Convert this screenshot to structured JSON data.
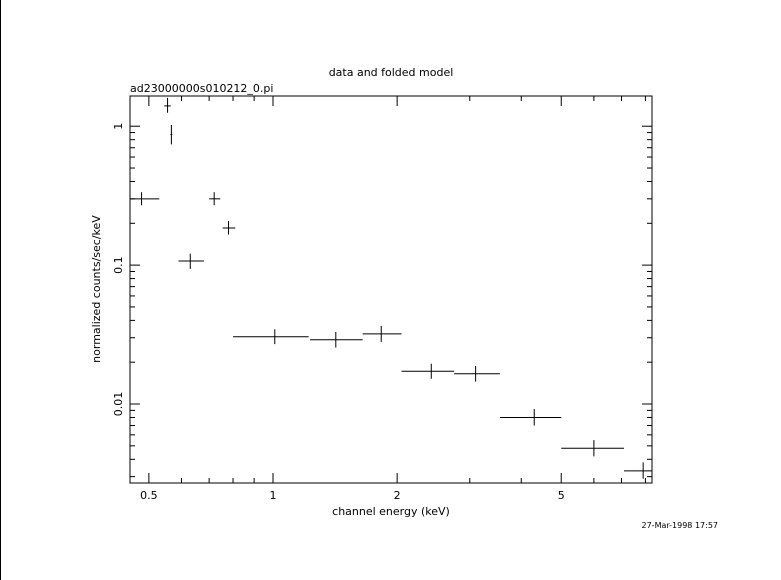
{
  "chart_data": {
    "type": "scatter",
    "title": "data and folded model",
    "subtitle": "ad23000000s010212_0.pi",
    "xlabel": "channel energy (keV)",
    "ylabel": "normalized counts/sec/keV",
    "timestamp": "27-Mar-1998 17:57",
    "x_scale": "log",
    "y_scale": "log",
    "xlim": [
      0.45,
      8.3
    ],
    "ylim": [
      0.0027,
      1.65
    ],
    "grid": false,
    "x_ticks": [
      {
        "value": 0.5,
        "label": "0.5"
      },
      {
        "value": 1,
        "label": "1"
      },
      {
        "value": 2,
        "label": "2"
      },
      {
        "value": 5,
        "label": "5"
      }
    ],
    "y_ticks": [
      {
        "value": 0.01,
        "label": "0.01"
      },
      {
        "value": 0.1,
        "label": "0.1"
      },
      {
        "value": 1,
        "label": "1"
      }
    ],
    "points": [
      {
        "x": 0.48,
        "xlo": 0.45,
        "xhi": 0.53,
        "y": 0.3,
        "ylo": 0.27,
        "yhi": 0.335
      },
      {
        "x": 0.555,
        "xlo": 0.545,
        "xhi": 0.565,
        "y": 1.4,
        "ylo": 1.25,
        "yhi": 1.6
      },
      {
        "x": 0.567,
        "xlo": 0.564,
        "xhi": 0.57,
        "y": 0.87,
        "ylo": 0.74,
        "yhi": 1.02
      },
      {
        "x": 0.63,
        "xlo": 0.59,
        "xhi": 0.68,
        "y": 0.107,
        "ylo": 0.094,
        "yhi": 0.121
      },
      {
        "x": 0.72,
        "xlo": 0.7,
        "xhi": 0.745,
        "y": 0.3,
        "ylo": 0.27,
        "yhi": 0.335
      },
      {
        "x": 0.78,
        "xlo": 0.755,
        "xhi": 0.81,
        "y": 0.185,
        "ylo": 0.166,
        "yhi": 0.208
      },
      {
        "x": 1.01,
        "xlo": 0.8,
        "xhi": 1.22,
        "y": 0.0305,
        "ylo": 0.027,
        "yhi": 0.0345
      },
      {
        "x": 1.42,
        "xlo": 1.23,
        "xhi": 1.65,
        "y": 0.029,
        "ylo": 0.0255,
        "yhi": 0.033
      },
      {
        "x": 1.83,
        "xlo": 1.65,
        "xhi": 2.05,
        "y": 0.032,
        "ylo": 0.028,
        "yhi": 0.0365
      },
      {
        "x": 2.42,
        "xlo": 2.05,
        "xhi": 2.75,
        "y": 0.0172,
        "ylo": 0.0152,
        "yhi": 0.0195
      },
      {
        "x": 3.1,
        "xlo": 2.75,
        "xhi": 3.55,
        "y": 0.0165,
        "ylo": 0.0145,
        "yhi": 0.0188
      },
      {
        "x": 4.3,
        "xlo": 3.55,
        "xhi": 5.0,
        "y": 0.008,
        "ylo": 0.007,
        "yhi": 0.0092
      },
      {
        "x": 6.0,
        "xlo": 5.0,
        "xhi": 7.1,
        "y": 0.0048,
        "ylo": 0.0042,
        "yhi": 0.0055
      },
      {
        "x": 7.9,
        "xlo": 7.1,
        "xhi": 8.3,
        "y": 0.0033,
        "ylo": 0.0029,
        "yhi": 0.0038
      }
    ]
  }
}
